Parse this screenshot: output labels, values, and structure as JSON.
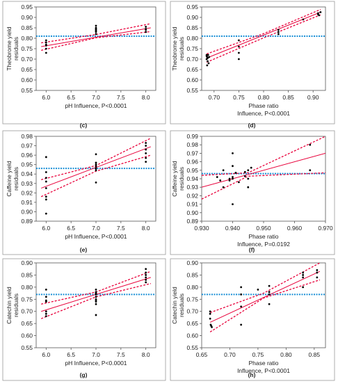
{
  "colors": {
    "fit": "#e8003a",
    "mean": "#1a8fd6",
    "point": "#000000",
    "frame": "#555555"
  },
  "chart_data": [
    {
      "id": "c",
      "type": "scatter",
      "panel_label": "(c)",
      "ylabel": [
        "Theobrome yield",
        "residuals"
      ],
      "xlabel": "pH Influence, P<0.0001",
      "xlabel2": "",
      "xlim": [
        5.8,
        8.2
      ],
      "ylim": [
        0.55,
        0.95
      ],
      "xticks": [
        6.0,
        6.5,
        7.0,
        7.5,
        8.0
      ],
      "xtick_labels": [
        "6.0",
        "6.5",
        "7.0",
        "7.5",
        "8.0"
      ],
      "yticks": [
        0.55,
        0.6,
        0.65,
        0.7,
        0.75,
        0.8,
        0.85,
        0.9,
        0.95
      ],
      "ytick_labels": [
        "0.55",
        "0.60",
        "0.65",
        "0.70",
        "0.75",
        "0.80",
        "0.85",
        "0.90",
        "0.95"
      ],
      "points": [
        [
          6.0,
          0.79
        ],
        [
          6.0,
          0.78
        ],
        [
          6.0,
          0.77
        ],
        [
          6.0,
          0.765
        ],
        [
          6.0,
          0.75
        ],
        [
          6.0,
          0.73
        ],
        [
          7.0,
          0.86
        ],
        [
          7.0,
          0.85
        ],
        [
          7.0,
          0.845
        ],
        [
          7.0,
          0.84
        ],
        [
          7.0,
          0.835
        ],
        [
          7.0,
          0.83
        ],
        [
          7.0,
          0.82
        ],
        [
          8.0,
          0.855
        ],
        [
          8.0,
          0.845
        ],
        [
          8.0,
          0.84
        ],
        [
          8.0,
          0.83
        ]
      ],
      "fit": [
        [
          5.9,
          0.76
        ],
        [
          8.1,
          0.85
        ]
      ],
      "ci_upper": [
        [
          5.9,
          0.778
        ],
        [
          7.0,
          0.818
        ],
        [
          8.1,
          0.87
        ]
      ],
      "ci_lower": [
        [
          5.9,
          0.742
        ],
        [
          7.0,
          0.802
        ],
        [
          8.1,
          0.832
        ]
      ],
      "mean": 0.81
    },
    {
      "id": "d",
      "type": "scatter",
      "panel_label": "(d)",
      "ylabel": [
        "Theobrome yield",
        "residuals"
      ],
      "xlabel": "Phase ratio",
      "xlabel2": "Influence, P<0.0001",
      "xlim": [
        0.675,
        0.925
      ],
      "ylim": [
        0.55,
        0.95
      ],
      "xticks": [
        0.7,
        0.75,
        0.8,
        0.85,
        0.9
      ],
      "xtick_labels": [
        "0.70",
        "0.75",
        "0.80",
        "0.85",
        "0.90"
      ],
      "yticks": [
        0.55,
        0.6,
        0.65,
        0.7,
        0.75,
        0.8,
        0.85,
        0.9,
        0.95
      ],
      "ytick_labels": [
        "0.55",
        "0.60",
        "0.65",
        "0.70",
        "0.75",
        "0.80",
        "0.85",
        "0.90",
        "0.95"
      ],
      "points": [
        [
          0.685,
          0.72
        ],
        [
          0.685,
          0.715
        ],
        [
          0.686,
          0.71
        ],
        [
          0.687,
          0.705
        ],
        [
          0.688,
          0.72
        ],
        [
          0.69,
          0.71
        ],
        [
          0.685,
          0.7
        ],
        [
          0.687,
          0.69
        ],
        [
          0.689,
          0.68
        ],
        [
          0.686,
          0.67
        ],
        [
          0.75,
          0.79
        ],
        [
          0.75,
          0.76
        ],
        [
          0.75,
          0.73
        ],
        [
          0.75,
          0.7
        ],
        [
          0.83,
          0.84
        ],
        [
          0.83,
          0.83
        ],
        [
          0.83,
          0.82
        ],
        [
          0.88,
          0.89
        ],
        [
          0.91,
          0.92
        ],
        [
          0.91,
          0.915
        ],
        [
          0.912,
          0.91
        ],
        [
          0.915,
          0.925
        ]
      ],
      "fit": [
        [
          0.685,
          0.705
        ],
        [
          0.915,
          0.925
        ]
      ],
      "ci_upper": [
        [
          0.685,
          0.725
        ],
        [
          0.8,
          0.822
        ],
        [
          0.915,
          0.938
        ]
      ],
      "ci_lower": [
        [
          0.685,
          0.685
        ],
        [
          0.8,
          0.802
        ],
        [
          0.915,
          0.912
        ]
      ],
      "mean": 0.81
    },
    {
      "id": "e",
      "type": "scatter",
      "panel_label": "(e)",
      "ylabel": [
        "Caffeine yield",
        "residuals"
      ],
      "xlabel": "pH Influence, P<0.0001",
      "xlabel2": "",
      "xlim": [
        5.8,
        8.2
      ],
      "ylim": [
        0.89,
        0.98
      ],
      "xticks": [
        6.0,
        6.5,
        7.0,
        7.5,
        8.0
      ],
      "xtick_labels": [
        "6.0",
        "6.5",
        "7.0",
        "7.5",
        "8.0"
      ],
      "yticks": [
        0.89,
        0.9,
        0.91,
        0.92,
        0.93,
        0.94,
        0.95,
        0.96,
        0.97,
        0.98
      ],
      "ytick_labels": [
        "0.89",
        "0.90",
        "0.91",
        "0.92",
        "0.93",
        "0.94",
        "0.95",
        "0.96",
        "0.97",
        "0.98"
      ],
      "points": [
        [
          6.0,
          0.958
        ],
        [
          6.0,
          0.942
        ],
        [
          6.0,
          0.936
        ],
        [
          6.0,
          0.932
        ],
        [
          6.0,
          0.925
        ],
        [
          6.0,
          0.916
        ],
        [
          6.0,
          0.913
        ],
        [
          6.0,
          0.898
        ],
        [
          7.0,
          0.961
        ],
        [
          7.0,
          0.952
        ],
        [
          7.0,
          0.95
        ],
        [
          7.0,
          0.948
        ],
        [
          7.0,
          0.946
        ],
        [
          7.0,
          0.944
        ],
        [
          7.0,
          0.931
        ],
        [
          8.0,
          0.973
        ],
        [
          8.0,
          0.97
        ],
        [
          8.0,
          0.966
        ],
        [
          8.0,
          0.962
        ],
        [
          8.0,
          0.957
        ],
        [
          8.0,
          0.953
        ]
      ],
      "fit": [
        [
          5.9,
          0.925
        ],
        [
          8.1,
          0.969
        ]
      ],
      "ci_upper": [
        [
          5.9,
          0.934
        ],
        [
          7.0,
          0.949
        ],
        [
          8.1,
          0.978
        ]
      ],
      "ci_lower": [
        [
          5.9,
          0.916
        ],
        [
          7.0,
          0.943
        ],
        [
          8.1,
          0.96
        ]
      ],
      "mean": 0.946
    },
    {
      "id": "f",
      "type": "scatter",
      "panel_label": "(f)",
      "ylabel": [
        "Caffeine yield",
        "residuals"
      ],
      "xlabel": "Phase ratio",
      "xlabel2": "Influence, P=0.0192",
      "xlim": [
        0.93,
        0.97
      ],
      "ylim": [
        0.89,
        0.99
      ],
      "xticks": [
        0.93,
        0.94,
        0.95,
        0.96,
        0.97
      ],
      "xtick_labels": [
        "0.930",
        "0.940",
        "0.950",
        "0.960",
        "0.970"
      ],
      "yticks": [
        0.89,
        0.9,
        0.91,
        0.92,
        0.93,
        0.94,
        0.95,
        0.96,
        0.97,
        0.98,
        0.99
      ],
      "ytick_labels": [
        "0.89",
        "0.90",
        "0.91",
        "0.92",
        "0.93",
        "0.94",
        "0.95",
        "0.96",
        "0.97",
        "0.98",
        "0.99"
      ],
      "points": [
        [
          0.935,
          0.942
        ],
        [
          0.936,
          0.938
        ],
        [
          0.937,
          0.95
        ],
        [
          0.937,
          0.93
        ],
        [
          0.939,
          0.94
        ],
        [
          0.939,
          0.938
        ],
        [
          0.94,
          0.97
        ],
        [
          0.94,
          0.955
        ],
        [
          0.94,
          0.942
        ],
        [
          0.94,
          0.94
        ],
        [
          0.94,
          0.91
        ],
        [
          0.941,
          0.947
        ],
        [
          0.942,
          0.936
        ],
        [
          0.944,
          0.948
        ],
        [
          0.944,
          0.943
        ],
        [
          0.945,
          0.95
        ],
        [
          0.945,
          0.94
        ],
        [
          0.945,
          0.93
        ],
        [
          0.946,
          0.953
        ],
        [
          0.965,
          0.98
        ],
        [
          0.965,
          0.95
        ]
      ],
      "fit": [
        [
          0.93,
          0.93
        ],
        [
          0.97,
          0.97
        ]
      ],
      "ci_upper": [
        [
          0.93,
          0.944
        ],
        [
          0.945,
          0.947
        ],
        [
          0.97,
          0.99
        ]
      ],
      "ci_lower": [
        [
          0.93,
          0.916
        ],
        [
          0.945,
          0.943
        ],
        [
          0.97,
          0.947
        ]
      ],
      "mean": 0.946
    },
    {
      "id": "g",
      "type": "scatter",
      "panel_label": "(g)",
      "ylabel": [
        "Catechin yield",
        "residuals"
      ],
      "xlabel": "pH Influence, P<0.0001",
      "xlabel2": "",
      "xlim": [
        5.8,
        8.2
      ],
      "ylim": [
        0.55,
        0.9
      ],
      "xticks": [
        6.0,
        6.5,
        7.0,
        7.5,
        8.0
      ],
      "xtick_labels": [
        "6.0",
        "6.5",
        "7.0",
        "7.5",
        "8.0"
      ],
      "yticks": [
        0.55,
        0.6,
        0.65,
        0.7,
        0.75,
        0.8,
        0.85,
        0.9
      ],
      "ytick_labels": [
        "0.55",
        "0.60",
        "0.65",
        "0.70",
        "0.75",
        "0.80",
        "0.85",
        "0.90"
      ],
      "points": [
        [
          6.0,
          0.79
        ],
        [
          6.0,
          0.76
        ],
        [
          6.0,
          0.745
        ],
        [
          6.0,
          0.74
        ],
        [
          6.0,
          0.7
        ],
        [
          6.0,
          0.69
        ],
        [
          6.0,
          0.68
        ],
        [
          7.0,
          0.79
        ],
        [
          7.0,
          0.78
        ],
        [
          7.0,
          0.775
        ],
        [
          7.0,
          0.77
        ],
        [
          7.0,
          0.76
        ],
        [
          7.0,
          0.75
        ],
        [
          7.0,
          0.745
        ],
        [
          7.0,
          0.74
        ],
        [
          7.0,
          0.73
        ],
        [
          7.0,
          0.685
        ],
        [
          8.0,
          0.875
        ],
        [
          8.0,
          0.86
        ],
        [
          8.0,
          0.85
        ],
        [
          8.0,
          0.84
        ],
        [
          8.0,
          0.83
        ],
        [
          8.0,
          0.82
        ]
      ],
      "fit": [
        [
          5.9,
          0.7
        ],
        [
          8.1,
          0.84
        ]
      ],
      "ci_upper": [
        [
          5.9,
          0.73
        ],
        [
          7.0,
          0.78
        ],
        [
          8.1,
          0.865
        ]
      ],
      "ci_lower": [
        [
          5.9,
          0.67
        ],
        [
          7.0,
          0.76
        ],
        [
          8.1,
          0.815
        ]
      ],
      "mean": 0.77
    },
    {
      "id": "h",
      "type": "scatter",
      "panel_label": "(h)",
      "ylabel": [
        "Catechin yield",
        "residuals"
      ],
      "xlabel": "Phase ratio",
      "xlabel2": "Influence, P<0.0001",
      "xlim": [
        0.65,
        0.87
      ],
      "ylim": [
        0.55,
        0.9
      ],
      "xticks": [
        0.65,
        0.7,
        0.75,
        0.8,
        0.85
      ],
      "xtick_labels": [
        "0.65",
        "0.70",
        "0.75",
        "0.80",
        "0.85"
      ],
      "yticks": [
        0.55,
        0.6,
        0.65,
        0.7,
        0.75,
        0.8,
        0.85,
        0.9
      ],
      "ytick_labels": [
        "0.55",
        "0.60",
        "0.65",
        "0.70",
        "0.75",
        "0.80",
        "0.85",
        "0.90"
      ],
      "points": [
        [
          0.665,
          0.7
        ],
        [
          0.665,
          0.69
        ],
        [
          0.665,
          0.67
        ],
        [
          0.666,
          0.645
        ],
        [
          0.667,
          0.64
        ],
        [
          0.668,
          0.635
        ],
        [
          0.72,
          0.8
        ],
        [
          0.72,
          0.77
        ],
        [
          0.72,
          0.72
        ],
        [
          0.72,
          0.645
        ],
        [
          0.75,
          0.79
        ],
        [
          0.77,
          0.805
        ],
        [
          0.77,
          0.78
        ],
        [
          0.77,
          0.77
        ],
        [
          0.77,
          0.73
        ],
        [
          0.83,
          0.86
        ],
        [
          0.83,
          0.85
        ],
        [
          0.83,
          0.84
        ],
        [
          0.83,
          0.8
        ],
        [
          0.855,
          0.87
        ],
        [
          0.855,
          0.86
        ],
        [
          0.855,
          0.84
        ]
      ],
      "fit": [
        [
          0.665,
          0.655
        ],
        [
          0.86,
          0.865
        ]
      ],
      "ci_upper": [
        [
          0.665,
          0.695
        ],
        [
          0.76,
          0.775
        ],
        [
          0.86,
          0.9
        ]
      ],
      "ci_lower": [
        [
          0.665,
          0.615
        ],
        [
          0.76,
          0.755
        ],
        [
          0.86,
          0.83
        ]
      ],
      "mean": 0.77
    }
  ]
}
